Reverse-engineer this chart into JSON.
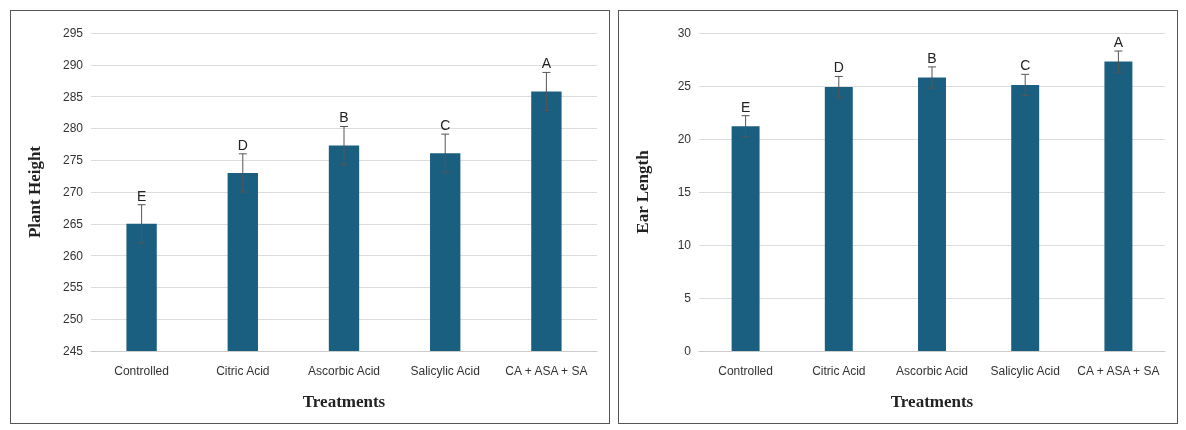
{
  "chart_data": [
    {
      "type": "bar",
      "categories": [
        "Controlled",
        "Citric Acid",
        "Ascorbic Acid",
        "Salicylic Acid",
        "CA + ASA + SA"
      ],
      "xlabel": "Treatments",
      "ylabel": "Plant Height",
      "color": "#1a5e80",
      "values": [
        265,
        273,
        277.3,
        276.1,
        285.8
      ],
      "errors": [
        3,
        3,
        3,
        3,
        3
      ],
      "ylim": [
        245,
        295
      ],
      "yticks": [
        245,
        250,
        255,
        260,
        265,
        270,
        275,
        280,
        285,
        290,
        295
      ],
      "grid": "y",
      "annotations": [
        {
          "text": "E",
          "x": "Controlled",
          "y": 268
        },
        {
          "text": "D",
          "x": "Citric Acid",
          "y": 276
        },
        {
          "text": "B",
          "x": "Ascorbic Acid",
          "y": 280.3
        },
        {
          "text": "C",
          "x": "Salicylic Acid",
          "y": 279.1
        },
        {
          "text": "A",
          "x": "CA + ASA + SA",
          "y": 288.8
        }
      ]
    },
    {
      "type": "bar",
      "categories": [
        "Controlled",
        "Citric Acid",
        "Ascorbic Acid",
        "Salicylic Acid",
        "CA + ASA + SA"
      ],
      "xlabel": "Treatments",
      "ylabel": "Ear Length",
      "color": "#1a5e80",
      "values": [
        21.2,
        24.9,
        25.8,
        25.1,
        27.3
      ],
      "errors": [
        1,
        1,
        1,
        1,
        1
      ],
      "ylim": [
        0,
        30
      ],
      "yticks": [
        0,
        5,
        10,
        15,
        20,
        25,
        30
      ],
      "grid": "y",
      "annotations": [
        {
          "text": "E",
          "x": "Controlled",
          "y": 22.2
        },
        {
          "text": "D",
          "x": "Citric Acid",
          "y": 25.9
        },
        {
          "text": "B",
          "x": "Ascorbic Acid",
          "y": 26.8
        },
        {
          "text": "C",
          "x": "Salicylic Acid",
          "y": 26.1
        },
        {
          "text": "A",
          "x": "CA + ASA + SA",
          "y": 28.3
        }
      ]
    }
  ]
}
